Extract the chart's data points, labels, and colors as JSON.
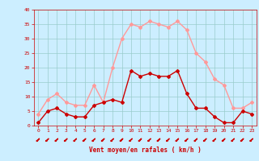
{
  "hours": [
    0,
    1,
    2,
    3,
    4,
    5,
    6,
    7,
    8,
    9,
    10,
    11,
    12,
    13,
    14,
    15,
    16,
    17,
    18,
    19,
    20,
    21,
    22,
    23
  ],
  "wind_avg": [
    1,
    5,
    6,
    4,
    3,
    3,
    7,
    8,
    9,
    8,
    19,
    17,
    18,
    17,
    17,
    19,
    11,
    6,
    6,
    3,
    1,
    1,
    5,
    4
  ],
  "wind_gust": [
    4,
    9,
    11,
    8,
    7,
    7,
    14,
    8,
    20,
    30,
    35,
    34,
    36,
    35,
    34,
    36,
    33,
    25,
    22,
    16,
    14,
    6,
    6,
    8
  ],
  "avg_color": "#cc0000",
  "gust_color": "#ff9999",
  "bg_color": "#cceeff",
  "grid_color": "#99cccc",
  "xlabel": "Vent moyen/en rafales ( km/h )",
  "ylim": [
    0,
    40
  ],
  "xlim": [
    -0.5,
    23.5
  ],
  "yticks": [
    0,
    5,
    10,
    15,
    20,
    25,
    30,
    35,
    40
  ],
  "xticks": [
    0,
    1,
    2,
    3,
    4,
    5,
    6,
    7,
    8,
    9,
    10,
    11,
    12,
    13,
    14,
    15,
    16,
    17,
    18,
    19,
    20,
    21,
    22,
    23
  ]
}
